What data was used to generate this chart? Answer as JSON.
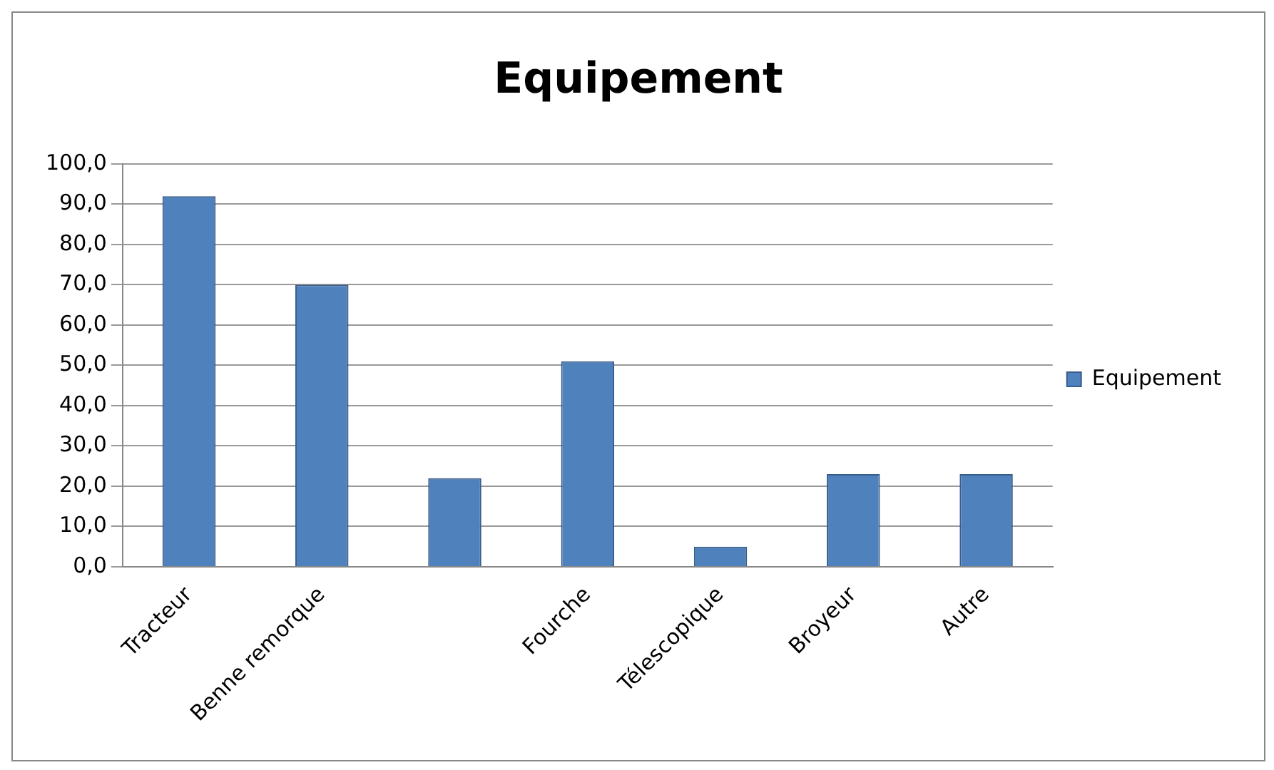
{
  "chart_data": {
    "type": "bar",
    "title": "Equipement",
    "categories": [
      "Tracteur",
      "Benne remorque",
      null,
      "Fourche",
      "Télescopique",
      "Broyeur",
      "Autre"
    ],
    "series": [
      {
        "name": "Equipement",
        "color": "#4f81bd",
        "values": [
          92,
          70,
          22,
          51,
          5,
          23,
          23
        ]
      }
    ],
    "ylim": [
      0,
      100
    ],
    "yticks": [
      {
        "value": 0,
        "label": "0,0"
      },
      {
        "value": 10,
        "label": "10,0"
      },
      {
        "value": 20,
        "label": "20,0"
      },
      {
        "value": 30,
        "label": "30,0"
      },
      {
        "value": 40,
        "label": "40,0"
      },
      {
        "value": 50,
        "label": "50,0"
      },
      {
        "value": 60,
        "label": "60,0"
      },
      {
        "value": 70,
        "label": "70,0"
      },
      {
        "value": 80,
        "label": "80,0"
      },
      {
        "value": 90,
        "label": "90,0"
      },
      {
        "value": 100,
        "label": "100,0"
      }
    ],
    "grid": "y",
    "legend": "right"
  }
}
